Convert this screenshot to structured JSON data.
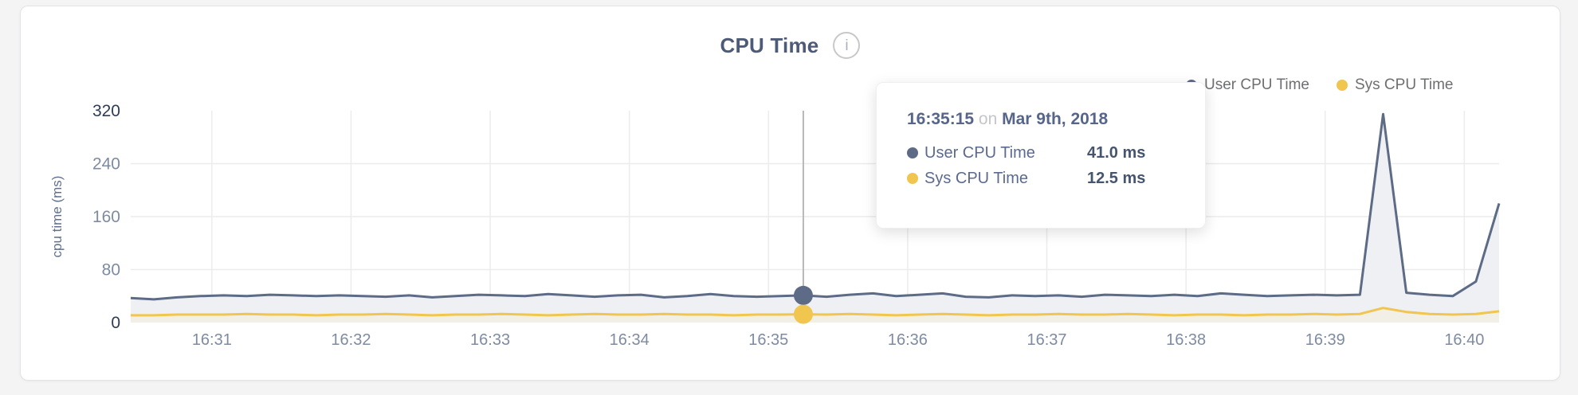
{
  "header": {
    "title": "CPU Time",
    "info_glyph": "i"
  },
  "legend": {
    "items": [
      {
        "label": "User CPU Time",
        "color": "#5d6b87"
      },
      {
        "label": "Sys CPU Time",
        "color": "#f0c64f"
      }
    ]
  },
  "tooltip": {
    "time": "16:35:15",
    "connector": "on",
    "date": "Mar 9th, 2018",
    "rows": [
      {
        "label": "User CPU Time",
        "value": "41.0 ms",
        "color": "#5d6b87"
      },
      {
        "label": "Sys CPU Time",
        "value": "12.5 ms",
        "color": "#f0c64f"
      }
    ]
  },
  "chart_data": {
    "type": "area",
    "title": "CPU Time",
    "xlabel": "",
    "ylabel": "cpu time (ms)",
    "ylim": [
      0,
      320
    ],
    "yticks": [
      0,
      80,
      160,
      240,
      320
    ],
    "xticks": [
      "16:31",
      "16:32",
      "16:33",
      "16:34",
      "16:35",
      "16:36",
      "16:37",
      "16:38",
      "16:39",
      "16:40"
    ],
    "grid": "horizontal-and-vertical",
    "legend_position": "top-right",
    "x": [
      "16:30:25",
      "16:30:35",
      "16:30:45",
      "16:30:55",
      "16:31:05",
      "16:31:15",
      "16:31:25",
      "16:31:35",
      "16:31:45",
      "16:31:55",
      "16:32:05",
      "16:32:15",
      "16:32:25",
      "16:32:35",
      "16:32:45",
      "16:32:55",
      "16:33:05",
      "16:33:15",
      "16:33:25",
      "16:33:35",
      "16:33:45",
      "16:33:55",
      "16:34:05",
      "16:34:15",
      "16:34:25",
      "16:34:35",
      "16:34:45",
      "16:34:55",
      "16:35:05",
      "16:35:15",
      "16:35:25",
      "16:35:35",
      "16:35:45",
      "16:35:55",
      "16:36:05",
      "16:36:15",
      "16:36:25",
      "16:36:35",
      "16:36:45",
      "16:36:55",
      "16:37:05",
      "16:37:15",
      "16:37:25",
      "16:37:35",
      "16:37:45",
      "16:37:55",
      "16:38:05",
      "16:38:15",
      "16:38:25",
      "16:38:35",
      "16:38:45",
      "16:38:55",
      "16:39:05",
      "16:39:15",
      "16:39:25",
      "16:39:35",
      "16:39:45",
      "16:39:55",
      "16:40:05",
      "16:40:15"
    ],
    "series": [
      {
        "name": "User CPU Time",
        "color": "#5d6b87",
        "fill": "#eef0f4",
        "unit": "ms",
        "values": [
          37,
          35,
          38,
          40,
          41,
          40,
          42,
          41,
          40,
          41,
          40,
          39,
          41,
          38,
          40,
          42,
          41,
          40,
          43,
          41,
          39,
          41,
          42,
          38,
          40,
          43,
          40,
          39,
          40,
          41,
          39,
          42,
          44,
          40,
          42,
          44,
          39,
          38,
          41,
          40,
          41,
          39,
          42,
          41,
          40,
          42,
          40,
          44,
          42,
          40,
          41,
          42,
          41,
          42,
          315,
          45,
          42,
          40,
          62,
          180
        ]
      },
      {
        "name": "Sys CPU Time",
        "color": "#f0c64f",
        "fill": "#f2efe6",
        "unit": "ms",
        "values": [
          11,
          11,
          12,
          12,
          12,
          13,
          12,
          12,
          11,
          12,
          12,
          13,
          12,
          11,
          12,
          12,
          13,
          12,
          11,
          12,
          13,
          12,
          12,
          13,
          12,
          12,
          11,
          12,
          12,
          12.5,
          12,
          13,
          12,
          11,
          12,
          13,
          12,
          11,
          12,
          12,
          13,
          12,
          12,
          13,
          12,
          11,
          12,
          12,
          11,
          12,
          12,
          13,
          12,
          13,
          22,
          16,
          13,
          12,
          13,
          17
        ]
      }
    ],
    "hover": {
      "index": 29,
      "time": "16:35:15",
      "user_value": 41.0,
      "sys_value": 12.5
    },
    "style": {
      "grid_color": "#ececec",
      "hover_line_color": "#b8b8b8",
      "tick_color": "#7e8ba0",
      "tick_color_strong": "#2e3c55",
      "x_tick_color": "#7e8ba0"
    }
  }
}
